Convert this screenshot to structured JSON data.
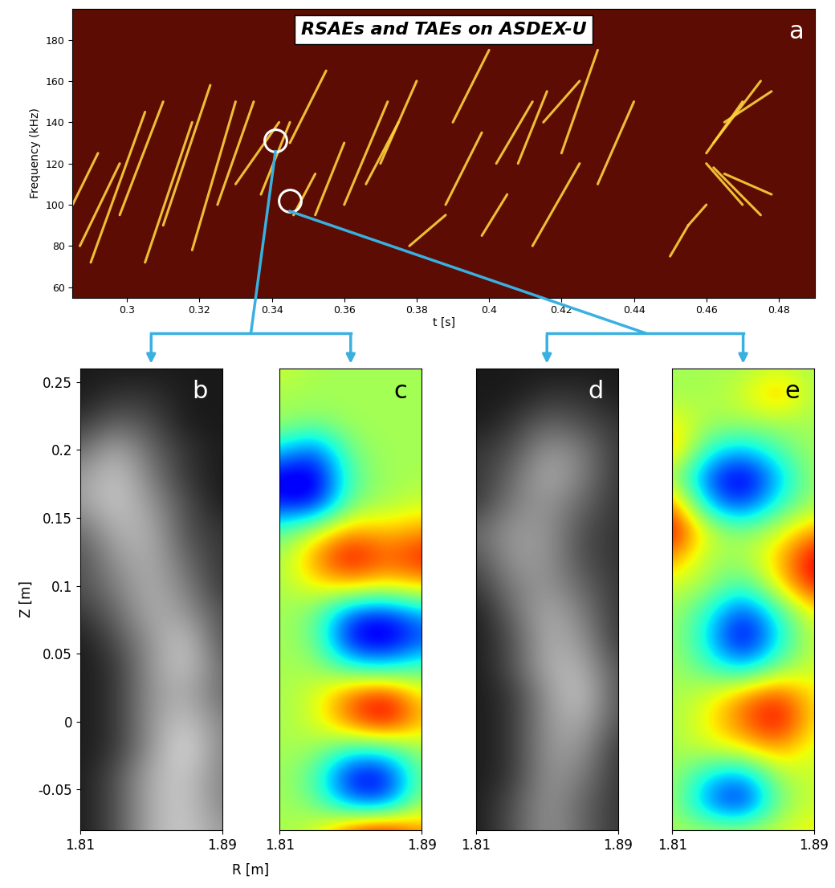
{
  "chart_data": [
    {
      "type": "line",
      "title": "RSAEs and TAEs on ASDEX-U",
      "label": "a",
      "xlabel": "t [s]",
      "ylabel": "Frequency (kHz)",
      "color": "#ffd23c",
      "xlim": [
        0.285,
        0.49
      ],
      "ylim": [
        55,
        195
      ],
      "xticks": [
        0.3,
        0.32,
        0.34,
        0.36,
        0.38,
        0.4,
        0.42,
        0.44,
        0.46,
        0.48
      ],
      "yticks": [
        60,
        80,
        100,
        120,
        140,
        160,
        180
      ],
      "segments": [
        {
          "x": [
            0.285,
            0.292
          ],
          "values": [
            100,
            125
          ]
        },
        {
          "x": [
            0.287,
            0.298
          ],
          "values": [
            80,
            120
          ]
        },
        {
          "x": [
            0.29,
            0.305
          ],
          "values": [
            72,
            145
          ]
        },
        {
          "x": [
            0.298,
            0.31
          ],
          "values": [
            95,
            150
          ]
        },
        {
          "x": [
            0.305,
            0.318
          ],
          "values": [
            72,
            140
          ]
        },
        {
          "x": [
            0.31,
            0.323
          ],
          "values": [
            90,
            158
          ]
        },
        {
          "x": [
            0.318,
            0.33
          ],
          "values": [
            78,
            150
          ]
        },
        {
          "x": [
            0.325,
            0.335
          ],
          "values": [
            100,
            150
          ]
        },
        {
          "x": [
            0.33,
            0.342
          ],
          "values": [
            110,
            140
          ]
        },
        {
          "x": [
            0.337,
            0.345
          ],
          "values": [
            105,
            140
          ]
        },
        {
          "x": [
            0.346,
            0.352
          ],
          "values": [
            95,
            115
          ]
        },
        {
          "x": [
            0.345,
            0.355
          ],
          "values": [
            130,
            165
          ]
        },
        {
          "x": [
            0.352,
            0.36
          ],
          "values": [
            95,
            130
          ]
        },
        {
          "x": [
            0.36,
            0.372
          ],
          "values": [
            100,
            150
          ]
        },
        {
          "x": [
            0.366,
            0.375
          ],
          "values": [
            110,
            140
          ]
        },
        {
          "x": [
            0.37,
            0.38
          ],
          "values": [
            120,
            160
          ]
        },
        {
          "x": [
            0.378,
            0.388
          ],
          "values": [
            80,
            95
          ]
        },
        {
          "x": [
            0.388,
            0.398
          ],
          "values": [
            100,
            135
          ]
        },
        {
          "x": [
            0.39,
            0.4
          ],
          "values": [
            140,
            175
          ]
        },
        {
          "x": [
            0.398,
            0.405
          ],
          "values": [
            85,
            105
          ]
        },
        {
          "x": [
            0.402,
            0.412
          ],
          "values": [
            120,
            150
          ]
        },
        {
          "x": [
            0.408,
            0.416
          ],
          "values": [
            120,
            155
          ]
        },
        {
          "x": [
            0.412,
            0.425
          ],
          "values": [
            80,
            120
          ]
        },
        {
          "x": [
            0.415,
            0.425
          ],
          "values": [
            140,
            160
          ]
        },
        {
          "x": [
            0.42,
            0.43
          ],
          "values": [
            125,
            175
          ]
        },
        {
          "x": [
            0.43,
            0.44
          ],
          "values": [
            110,
            150
          ]
        },
        {
          "x": [
            0.45,
            0.455
          ],
          "values": [
            75,
            90
          ]
        },
        {
          "x": [
            0.455,
            0.46
          ],
          "values": [
            90,
            100
          ]
        },
        {
          "x": [
            0.46,
            0.47
          ],
          "values": [
            125,
            150
          ]
        },
        {
          "x": [
            0.46,
            0.47
          ],
          "values": [
            120,
            100
          ]
        },
        {
          "x": [
            0.462,
            0.475
          ],
          "values": [
            130,
            160
          ]
        },
        {
          "x": [
            0.462,
            0.475
          ],
          "values": [
            118,
            95
          ]
        },
        {
          "x": [
            0.465,
            0.478
          ],
          "values": [
            140,
            155
          ]
        },
        {
          "x": [
            0.465,
            0.478
          ],
          "values": [
            115,
            105
          ]
        }
      ],
      "markers": {
        "x": [
          0.341,
          0.345
        ],
        "values": [
          131,
          102
        ]
      }
    },
    {
      "type": "heatmap",
      "label": "b",
      "xlabel": "R [m]",
      "ylabel": "Z [m]",
      "color": "gray",
      "xlim": [
        1.81,
        1.89
      ],
      "ylim": [
        -0.08,
        0.26
      ],
      "xticks": [
        1.81,
        1.89
      ],
      "yticks": [
        -0.05,
        0,
        0.05,
        0.1,
        0.15,
        0.2,
        0.25
      ],
      "clim": [
        0,
        1
      ],
      "x": [
        1.81,
        1.83,
        1.85,
        1.87,
        1.89
      ],
      "y": [
        -0.08,
        -0.06,
        -0.04,
        -0.02,
        0,
        0.02,
        0.04,
        0.06,
        0.08,
        0.1,
        0.12,
        0.14,
        0.16,
        0.18,
        0.2,
        0.22,
        0.24,
        0.26
      ],
      "cells": [
        [
          0.1,
          0.3,
          0.7,
          0.8,
          0.6
        ],
        [
          0.1,
          0.3,
          0.7,
          0.8,
          0.5
        ],
        [
          0.1,
          0.3,
          0.7,
          0.8,
          0.5
        ],
        [
          0.1,
          0.2,
          0.6,
          0.9,
          0.5
        ],
        [
          0.1,
          0.2,
          0.6,
          0.8,
          0.5
        ],
        [
          0.1,
          0.2,
          0.6,
          0.7,
          0.4
        ],
        [
          0.1,
          0.2,
          0.6,
          0.8,
          0.4
        ],
        [
          0.1,
          0.3,
          0.6,
          0.8,
          0.3
        ],
        [
          0.2,
          0.4,
          0.7,
          0.6,
          0.3
        ],
        [
          0.3,
          0.5,
          0.7,
          0.5,
          0.2
        ],
        [
          0.3,
          0.6,
          0.7,
          0.4,
          0.2
        ],
        [
          0.4,
          0.7,
          0.7,
          0.3,
          0.2
        ],
        [
          0.6,
          0.8,
          0.6,
          0.3,
          0.1
        ],
        [
          0.6,
          0.8,
          0.5,
          0.2,
          0.1
        ],
        [
          0.4,
          0.7,
          0.4,
          0.2,
          0.1
        ],
        [
          0.2,
          0.4,
          0.3,
          0.1,
          0.1
        ],
        [
          0.1,
          0.2,
          0.2,
          0.1,
          0.1
        ],
        [
          0.1,
          0.1,
          0.1,
          0.1,
          0.1
        ]
      ]
    },
    {
      "type": "heatmap",
      "label": "c",
      "color": "jet",
      "tick_labels": "x",
      "xlim": [
        1.81,
        1.89
      ],
      "ylim": [
        -0.08,
        0.26
      ],
      "xticks": [
        1.81,
        1.89
      ],
      "clim": [
        -1,
        1
      ],
      "x": [
        1.81,
        1.83,
        1.85,
        1.87,
        1.89
      ],
      "y": [
        -0.08,
        -0.06,
        -0.04,
        -0.02,
        0,
        0.02,
        0.04,
        0.06,
        0.08,
        0.1,
        0.12,
        0.14,
        0.16,
        0.18,
        0.2,
        0.22,
        0.24,
        0.26
      ],
      "cells": [
        [
          0.1,
          0.2,
          0.7,
          0.9,
          0.5
        ],
        [
          0.1,
          0.0,
          -0.5,
          -0.6,
          0.1
        ],
        [
          0.1,
          -0.1,
          -0.8,
          -0.8,
          0.0
        ],
        [
          0.1,
          0.1,
          -0.2,
          -0.2,
          0.1
        ],
        [
          0.1,
          0.2,
          0.6,
          0.9,
          0.4
        ],
        [
          0.1,
          0.2,
          0.6,
          0.8,
          0.3
        ],
        [
          0.1,
          0.1,
          -0.2,
          -0.3,
          -0.1
        ],
        [
          0.1,
          0.0,
          -0.8,
          -0.9,
          -0.6
        ],
        [
          0.1,
          0.0,
          -0.6,
          -0.7,
          -0.4
        ],
        [
          0.1,
          0.3,
          0.4,
          0.3,
          0.4
        ],
        [
          0.1,
          0.5,
          0.9,
          0.6,
          0.8
        ],
        [
          -0.1,
          0.2,
          0.5,
          0.4,
          0.5
        ],
        [
          -0.7,
          -0.8,
          0.0,
          0.1,
          0.2
        ],
        [
          -0.8,
          -0.9,
          -0.1,
          0.1,
          0.1
        ],
        [
          -0.3,
          -0.6,
          0.0,
          0.1,
          0.1
        ],
        [
          0.1,
          0.0,
          0.1,
          0.1,
          0.1
        ],
        [
          0.1,
          0.1,
          0.1,
          0.1,
          0.1
        ],
        [
          0.2,
          0.1,
          0.1,
          0.1,
          0.1
        ]
      ]
    },
    {
      "type": "heatmap",
      "label": "d",
      "color": "gray",
      "tick_labels": "x",
      "xlim": [
        1.81,
        1.89
      ],
      "ylim": [
        -0.08,
        0.26
      ],
      "xticks": [
        1.81,
        1.89
      ],
      "clim": [
        0,
        1
      ],
      "x": [
        1.81,
        1.83,
        1.85,
        1.87,
        1.89
      ],
      "y": [
        -0.08,
        -0.06,
        -0.04,
        -0.02,
        0,
        0.02,
        0.04,
        0.06,
        0.08,
        0.1,
        0.12,
        0.14,
        0.16,
        0.18,
        0.2,
        0.22,
        0.24,
        0.26
      ],
      "cells": [
        [
          0.1,
          0.3,
          0.6,
          0.4,
          0.2
        ],
        [
          0.1,
          0.3,
          0.6,
          0.4,
          0.2
        ],
        [
          0.1,
          0.2,
          0.6,
          0.5,
          0.2
        ],
        [
          0.1,
          0.2,
          0.6,
          0.6,
          0.2
        ],
        [
          0.1,
          0.2,
          0.6,
          0.7,
          0.3
        ],
        [
          0.1,
          0.2,
          0.6,
          0.8,
          0.3
        ],
        [
          0.1,
          0.3,
          0.7,
          0.7,
          0.3
        ],
        [
          0.1,
          0.3,
          0.7,
          0.6,
          0.2
        ],
        [
          0.1,
          0.4,
          0.7,
          0.5,
          0.2
        ],
        [
          0.2,
          0.5,
          0.6,
          0.4,
          0.2
        ],
        [
          0.3,
          0.6,
          0.6,
          0.3,
          0.2
        ],
        [
          0.4,
          0.6,
          0.6,
          0.3,
          0.2
        ],
        [
          0.2,
          0.5,
          0.6,
          0.4,
          0.2
        ],
        [
          0.2,
          0.4,
          0.7,
          0.5,
          0.2
        ],
        [
          0.2,
          0.3,
          0.6,
          0.5,
          0.2
        ],
        [
          0.1,
          0.2,
          0.4,
          0.3,
          0.2
        ],
        [
          0.1,
          0.1,
          0.2,
          0.2,
          0.1
        ],
        [
          0.1,
          0.1,
          0.1,
          0.1,
          0.1
        ]
      ]
    },
    {
      "type": "heatmap",
      "label": "e",
      "color": "jet",
      "tick_labels": "x",
      "xlim": [
        1.81,
        1.89
      ],
      "ylim": [
        -0.08,
        0.26
      ],
      "xticks": [
        1.81,
        1.89
      ],
      "clim": [
        -1,
        1
      ],
      "x": [
        1.81,
        1.83,
        1.85,
        1.87,
        1.89
      ],
      "y": [
        -0.08,
        -0.06,
        -0.04,
        -0.02,
        0,
        0.02,
        0.04,
        0.06,
        0.08,
        0.1,
        0.12,
        0.14,
        0.16,
        0.18,
        0.2,
        0.22,
        0.24,
        0.26
      ],
      "cells": [
        [
          0.1,
          0.1,
          0.1,
          0.2,
          0.3
        ],
        [
          0.1,
          -0.5,
          -0.8,
          0.0,
          0.2
        ],
        [
          0.1,
          -0.3,
          -0.5,
          0.1,
          0.2
        ],
        [
          0.1,
          0.2,
          0.3,
          0.5,
          0.2
        ],
        [
          0.1,
          0.3,
          0.6,
          0.9,
          0.3
        ],
        [
          0.1,
          0.2,
          0.5,
          0.7,
          0.3
        ],
        [
          0.1,
          -0.1,
          -0.4,
          0.0,
          0.2
        ],
        [
          0.1,
          -0.3,
          -0.9,
          -0.3,
          0.2
        ],
        [
          0.1,
          -0.2,
          -0.7,
          -0.2,
          0.3
        ],
        [
          0.2,
          0.1,
          -0.2,
          0.3,
          0.8
        ],
        [
          0.5,
          0.1,
          0.1,
          0.4,
          0.9
        ],
        [
          0.9,
          0.2,
          0.0,
          0.2,
          0.5
        ],
        [
          0.6,
          -0.4,
          -0.7,
          -0.2,
          0.1
        ],
        [
          0.1,
          -0.6,
          -0.9,
          -0.4,
          0.1
        ],
        [
          0.5,
          -0.2,
          -0.4,
          -0.1,
          0.1
        ],
        [
          0.3,
          0.1,
          0.1,
          0.1,
          0.1
        ],
        [
          0.1,
          0.1,
          0.2,
          0.5,
          0.1
        ],
        [
          0.1,
          0.1,
          0.1,
          0.2,
          0.1
        ]
      ]
    }
  ]
}
